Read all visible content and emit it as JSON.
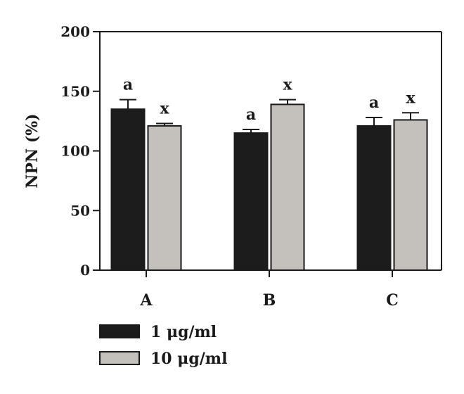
{
  "chart_data": {
    "type": "bar",
    "ylabel": "NPN (%)",
    "xlabel": "",
    "ylim": [
      0,
      200
    ],
    "yticks": [
      0,
      50,
      100,
      150,
      200
    ],
    "categories": [
      "A",
      "B",
      "C"
    ],
    "series": [
      {
        "name": "1 μg/ml",
        "color": "#1c1c1c",
        "values": [
          135,
          115,
          121
        ],
        "errors": [
          8,
          3,
          7
        ],
        "labels": [
          "a",
          "a",
          "a"
        ]
      },
      {
        "name": "10 μg/ml",
        "color": "#c4c0bc",
        "values": [
          121,
          139,
          126
        ],
        "errors": [
          2,
          4,
          6
        ],
        "labels": [
          "x",
          "x",
          "x"
        ]
      }
    ],
    "legend": "bottom-left",
    "grid": false
  }
}
